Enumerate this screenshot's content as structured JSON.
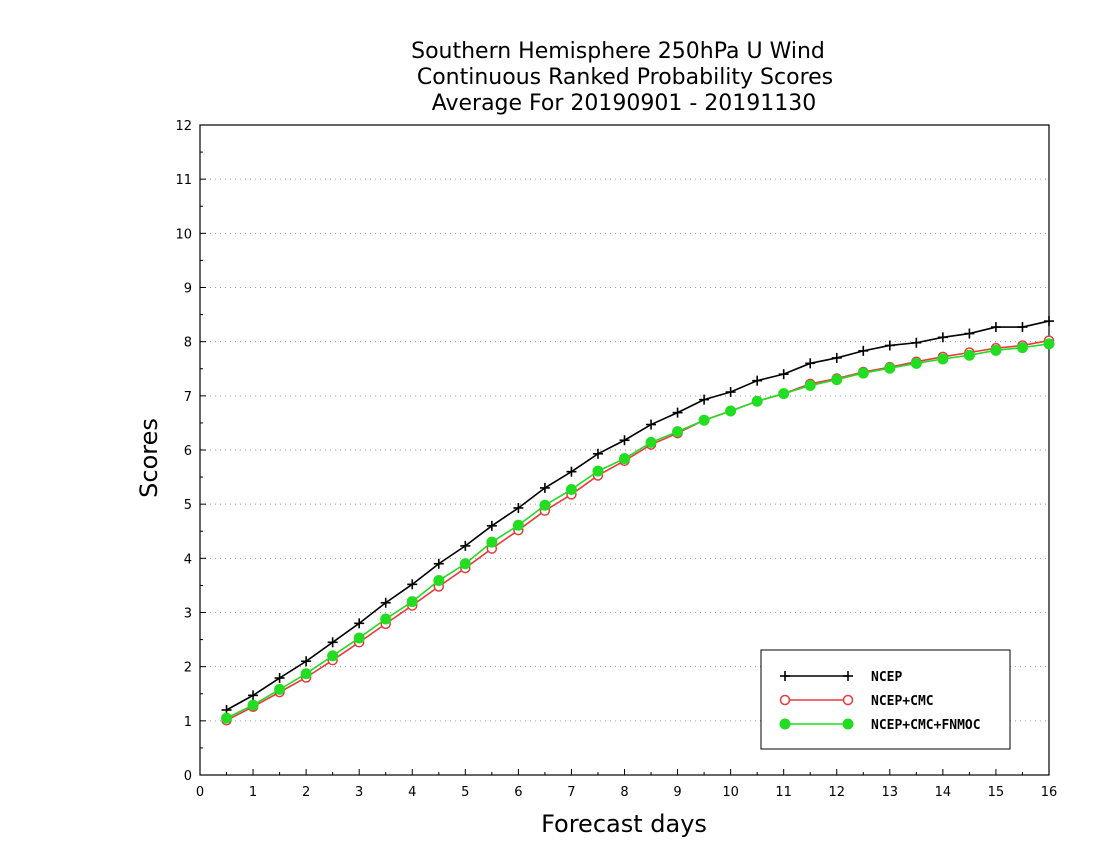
{
  "chart_data": {
    "type": "line",
    "title": [
      "Southern Hemisphere 250hPa U Wind",
      "Continuous Ranked Probability Scores",
      "Average For 20190901 - 20191130"
    ],
    "xlabel": "Forecast days",
    "ylabel": "Scores",
    "xlim": [
      0,
      16
    ],
    "ylim": [
      0,
      12
    ],
    "xticks": [
      "0",
      "1",
      "2",
      "3",
      "4",
      "5",
      "6",
      "7",
      "8",
      "9",
      "10",
      "11",
      "12",
      "13",
      "14",
      "15",
      "16"
    ],
    "yticks": [
      "0",
      "1",
      "2",
      "3",
      "4",
      "5",
      "6",
      "7",
      "8",
      "9",
      "10",
      "11",
      "12"
    ],
    "grid": true,
    "legend_position": "bottom-right",
    "x": [
      0.5,
      1,
      1.5,
      2,
      2.5,
      3,
      3.5,
      4,
      4.5,
      5,
      5.5,
      6,
      6.5,
      7,
      7.5,
      8,
      8.5,
      9,
      9.5,
      10,
      10.5,
      11,
      11.5,
      12,
      12.5,
      13,
      13.5,
      14,
      14.5,
      15,
      15.5,
      16
    ],
    "series": [
      {
        "name": "NCEP",
        "color": "#000000",
        "marker": "plus",
        "values": [
          1.2,
          1.47,
          1.79,
          2.1,
          2.45,
          2.8,
          3.18,
          3.52,
          3.9,
          4.23,
          4.6,
          4.93,
          5.3,
          5.6,
          5.93,
          6.18,
          6.47,
          6.69,
          6.93,
          7.07,
          7.28,
          7.4,
          7.6,
          7.7,
          7.83,
          7.93,
          7.98,
          8.08,
          8.15,
          8.27,
          8.27,
          8.38
        ]
      },
      {
        "name": "NCEP+CMC",
        "color": "#e8393f",
        "marker": "open-circle",
        "values": [
          1.01,
          1.26,
          1.53,
          1.8,
          2.12,
          2.45,
          2.79,
          3.13,
          3.48,
          3.82,
          4.18,
          4.52,
          4.88,
          5.18,
          5.53,
          5.8,
          6.1,
          6.31,
          6.55,
          6.72,
          6.9,
          7.04,
          7.22,
          7.32,
          7.44,
          7.53,
          7.63,
          7.72,
          7.8,
          7.88,
          7.93,
          8.02
        ]
      },
      {
        "name": "NCEP+CMC+FNMOC",
        "color": "#22dd22",
        "marker": "filled-circle",
        "values": [
          1.05,
          1.29,
          1.58,
          1.87,
          2.2,
          2.53,
          2.88,
          3.2,
          3.59,
          3.9,
          4.3,
          4.61,
          4.98,
          5.27,
          5.61,
          5.84,
          6.14,
          6.34,
          6.55,
          6.72,
          6.9,
          7.04,
          7.19,
          7.3,
          7.42,
          7.51,
          7.6,
          7.68,
          7.75,
          7.84,
          7.89,
          7.96
        ]
      }
    ]
  }
}
